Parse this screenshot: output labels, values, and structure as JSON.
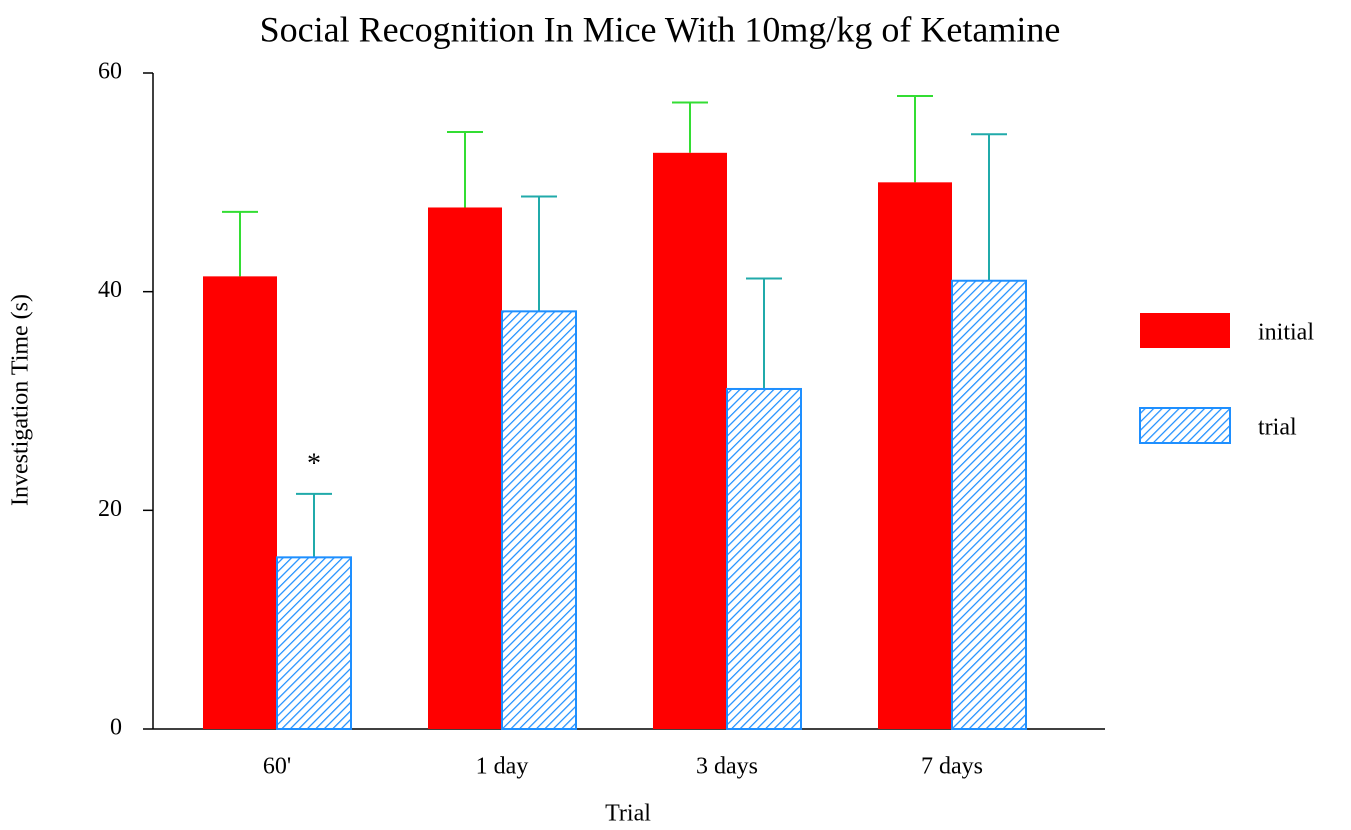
{
  "chart_data": {
    "type": "bar",
    "title": "Social Recognition In Mice With 10mg/kg of Ketamine",
    "x_label": "Trial",
    "y_label": "Investigation Time (s)",
    "categories": [
      "60'",
      "1 day",
      "3 days",
      "7 days"
    ],
    "series": [
      {
        "name": "initial",
        "color": "#ff0000",
        "error_color": "#33dd33",
        "hatch": false,
        "values": [
          41.4,
          47.7,
          52.7,
          50.0
        ],
        "errors": [
          5.9,
          6.9,
          4.6,
          7.9
        ]
      },
      {
        "name": "trial",
        "color": "#1e8fff",
        "error_color": "#20aaaa",
        "hatch": true,
        "values": [
          15.7,
          38.2,
          31.1,
          41.0
        ],
        "errors": [
          5.8,
          10.5,
          10.1,
          13.4
        ]
      }
    ],
    "annotations": [
      {
        "text": "*",
        "category": "60'",
        "series": "trial"
      }
    ],
    "ylim": [
      0,
      60
    ],
    "yticks": [
      0,
      20,
      40,
      60
    ],
    "grid": false,
    "legend": "right"
  }
}
